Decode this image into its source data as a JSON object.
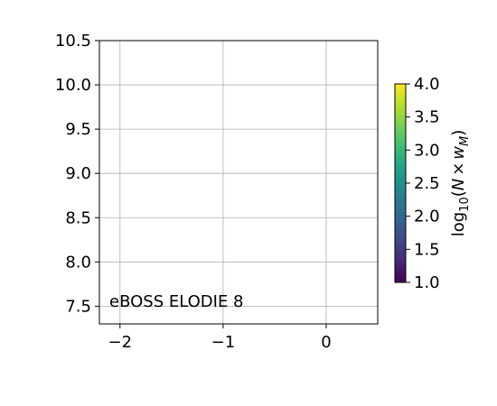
{
  "chart_data": {
    "type": "heatmap",
    "title": "",
    "xlabel": "",
    "ylabel": "",
    "xlim": [
      -2.2,
      0.5
    ],
    "ylim": [
      7.3,
      10.5
    ],
    "xticks": [
      -2,
      -1,
      0
    ],
    "xtick_labels": [
      "−2",
      "−1",
      "0"
    ],
    "yticks": [
      7.5,
      8.0,
      8.5,
      9.0,
      9.5,
      10.0,
      10.5
    ],
    "ytick_labels": [
      "7.5",
      "8.0",
      "8.5",
      "9.0",
      "9.5",
      "10.0",
      "10.5"
    ],
    "grid": true,
    "annotation": "eBOSS ELODIE 8",
    "data": [],
    "colorbar": {
      "label": "log10(N×wM)",
      "label_parts": {
        "prefix": "log",
        "sub": "10",
        "open": "(",
        "n": "N",
        "times": "×",
        "w": "w",
        "wsub": "M",
        "close": ")"
      },
      "range": [
        1.0,
        4.0
      ],
      "ticks": [
        1.0,
        1.5,
        2.0,
        2.5,
        3.0,
        3.5,
        4.0
      ],
      "tick_labels": [
        "1.0",
        "1.5",
        "2.0",
        "2.5",
        "3.0",
        "3.5",
        "4.0"
      ],
      "colormap": "viridis",
      "colors": [
        "#440154",
        "#482878",
        "#3e4a89",
        "#31688e",
        "#26828e",
        "#1f9e89",
        "#35b779",
        "#6ece58",
        "#b5de2b",
        "#fde725"
      ]
    }
  }
}
